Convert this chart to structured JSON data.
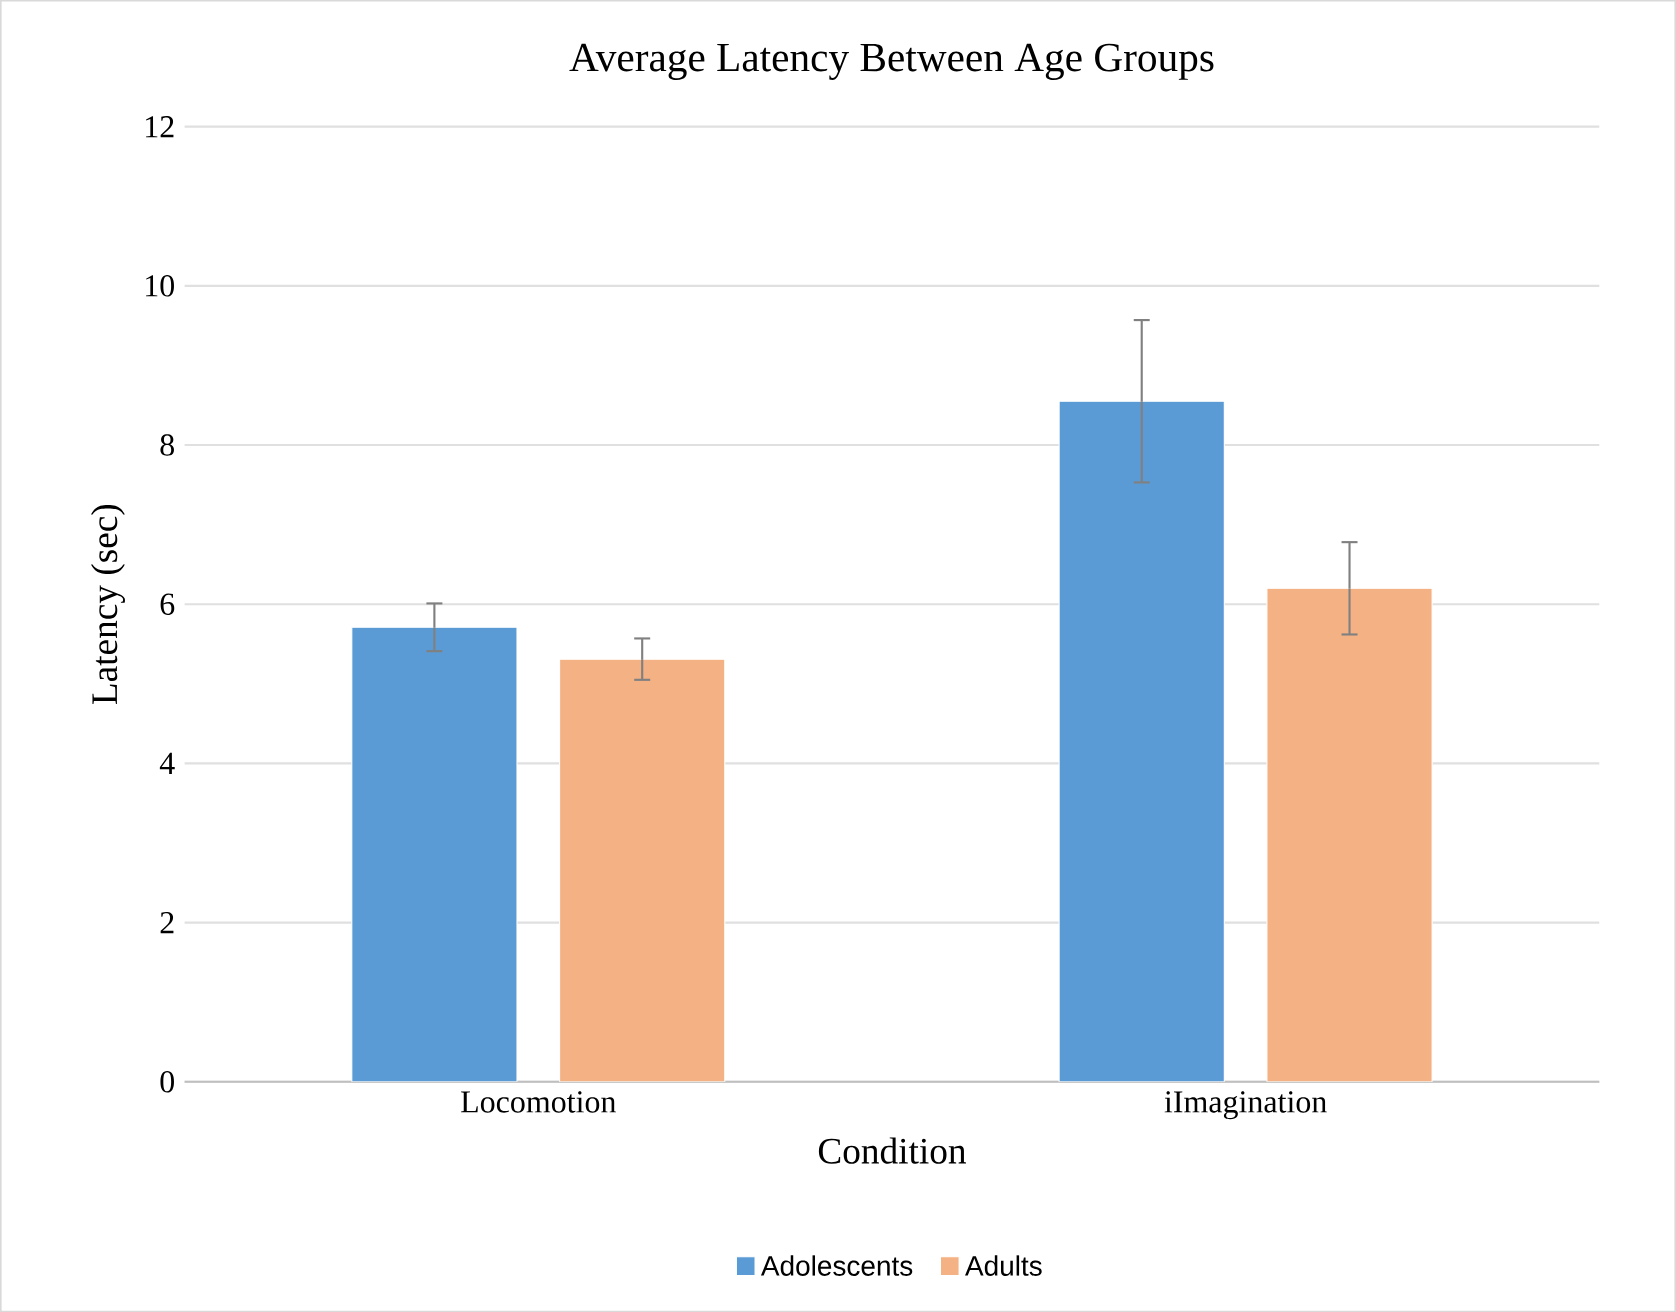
{
  "chart_data": {
    "type": "bar",
    "title": "Average Latency Between Age Groups",
    "xlabel": "Condition",
    "ylabel": "Latency (sec)",
    "categories": [
      "Locomotion",
      "iImagination"
    ],
    "series": [
      {
        "name": "Adolescents",
        "color": "#5b9bd5",
        "values": [
          5.71,
          8.55
        ],
        "errors": [
          0.3,
          1.02
        ]
      },
      {
        "name": "Adults",
        "color": "#f4b183",
        "values": [
          5.31,
          6.2
        ],
        "errors": [
          0.26,
          0.58
        ]
      }
    ],
    "ylim": [
      0,
      12
    ],
    "yticks": [
      0,
      2,
      4,
      6,
      8,
      10,
      12
    ],
    "grid": "y",
    "legend": "bottom"
  }
}
